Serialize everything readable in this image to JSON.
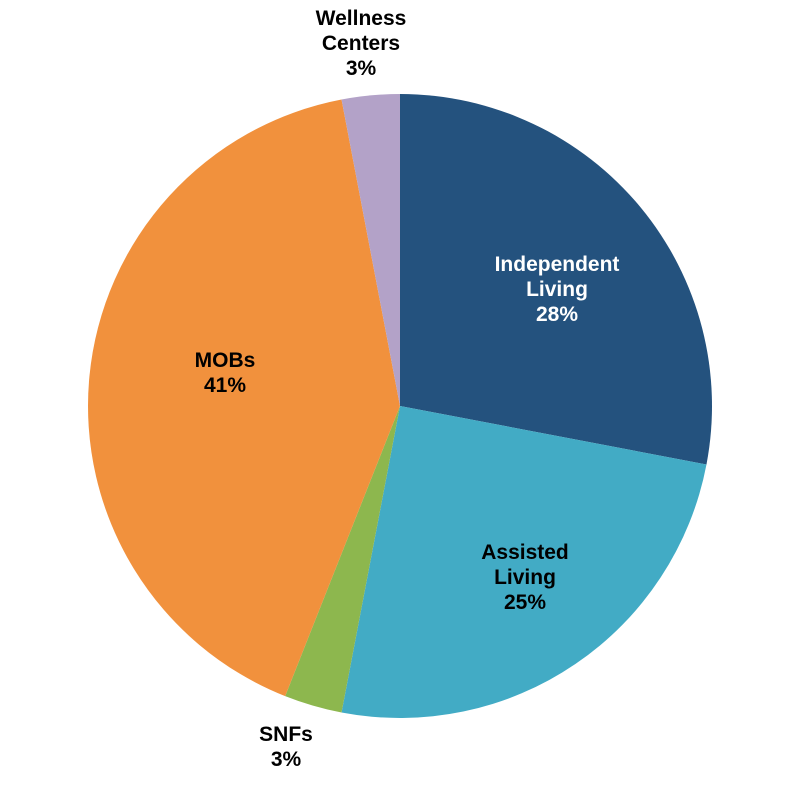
{
  "chart_data": {
    "type": "pie",
    "title": "",
    "start_angle_deg": 0,
    "direction": "clockwise",
    "background": "#FFFFFF",
    "legend": "none",
    "slices": [
      {
        "label": "Independent Living",
        "value": 28,
        "pct_label": "28%",
        "color": "#24527E",
        "text_color": "#FFFFFF",
        "label_placement": "inside",
        "label_lines": [
          "Independent",
          "Living",
          "28%"
        ]
      },
      {
        "label": "Assisted Living",
        "value": 25,
        "pct_label": "25%",
        "color": "#42ABC5",
        "text_color": "#000000",
        "label_placement": "inside",
        "label_lines": [
          "Assisted",
          "Living",
          "25%"
        ]
      },
      {
        "label": "SNFs",
        "value": 3,
        "pct_label": "3%",
        "color": "#8DB74E",
        "text_color": "#000000",
        "label_placement": "outside-bottom",
        "label_lines": [
          "SNFs",
          "3%"
        ]
      },
      {
        "label": "MOBs",
        "value": 41,
        "pct_label": "41%",
        "color": "#F1913D",
        "text_color": "#000000",
        "label_placement": "inside",
        "label_lines": [
          "MOBs",
          "41%"
        ]
      },
      {
        "label": "Wellness Centers",
        "value": 3,
        "pct_label": "3%",
        "color": "#B3A2C8",
        "text_color": "#000000",
        "label_placement": "outside-top",
        "label_lines": [
          "Wellness",
          "Centers",
          "3%"
        ]
      }
    ]
  }
}
